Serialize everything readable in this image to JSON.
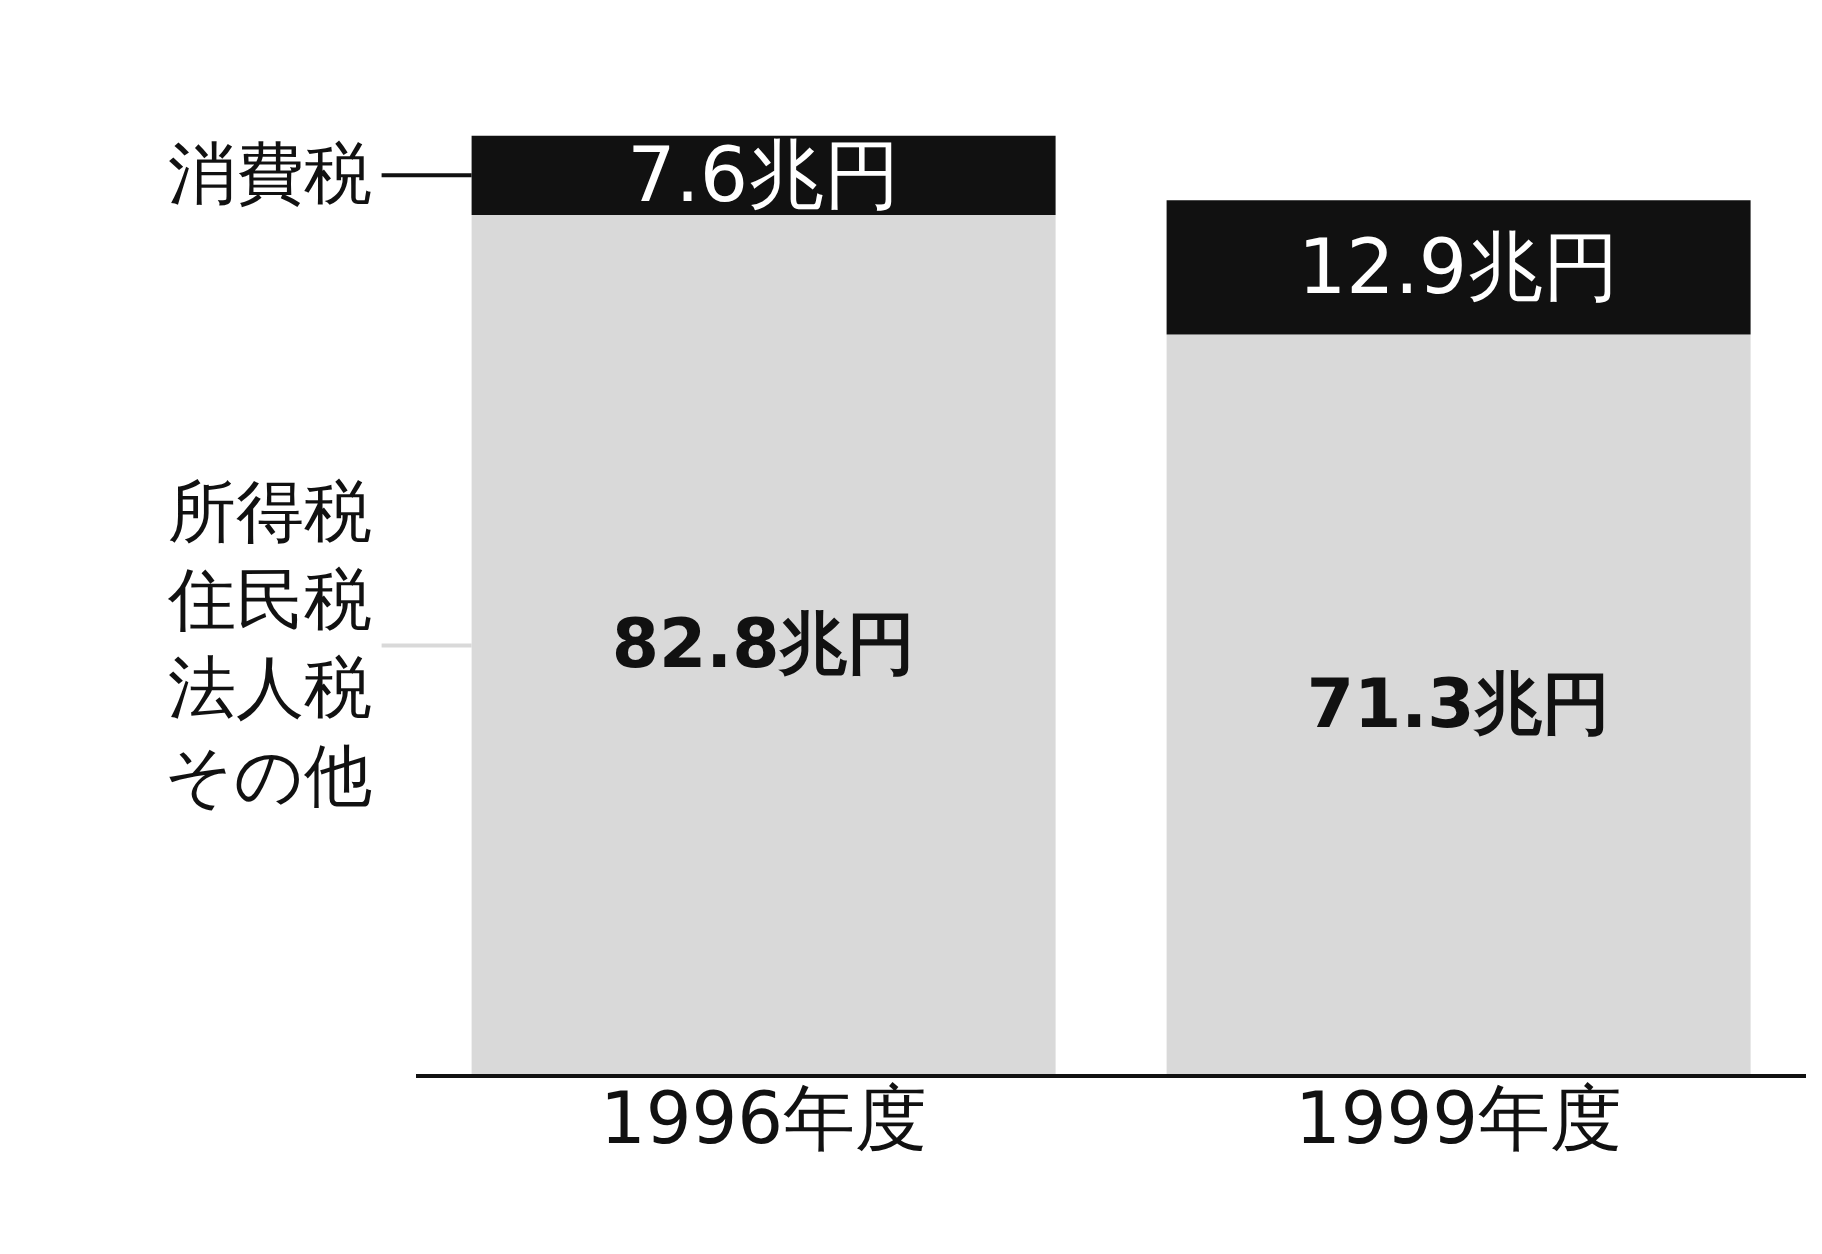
{
  "chart_data": {
    "type": "bar",
    "stacked": true,
    "categories": [
      "1996年度",
      "1999年度"
    ],
    "series": [
      {
        "name": "所得税住民税法人税その他",
        "color": "#d9d9d9",
        "values": [
          82.8,
          71.3
        ],
        "value_labels": [
          "82.8兆円",
          "71.3兆円"
        ]
      },
      {
        "name": "消費税",
        "color": "#111111",
        "values": [
          7.6,
          12.9
        ],
        "value_labels": [
          "7.6兆円",
          "12.9兆円"
        ]
      }
    ],
    "tick_labels": "x",
    "legend": "left",
    "grid": false
  }
}
